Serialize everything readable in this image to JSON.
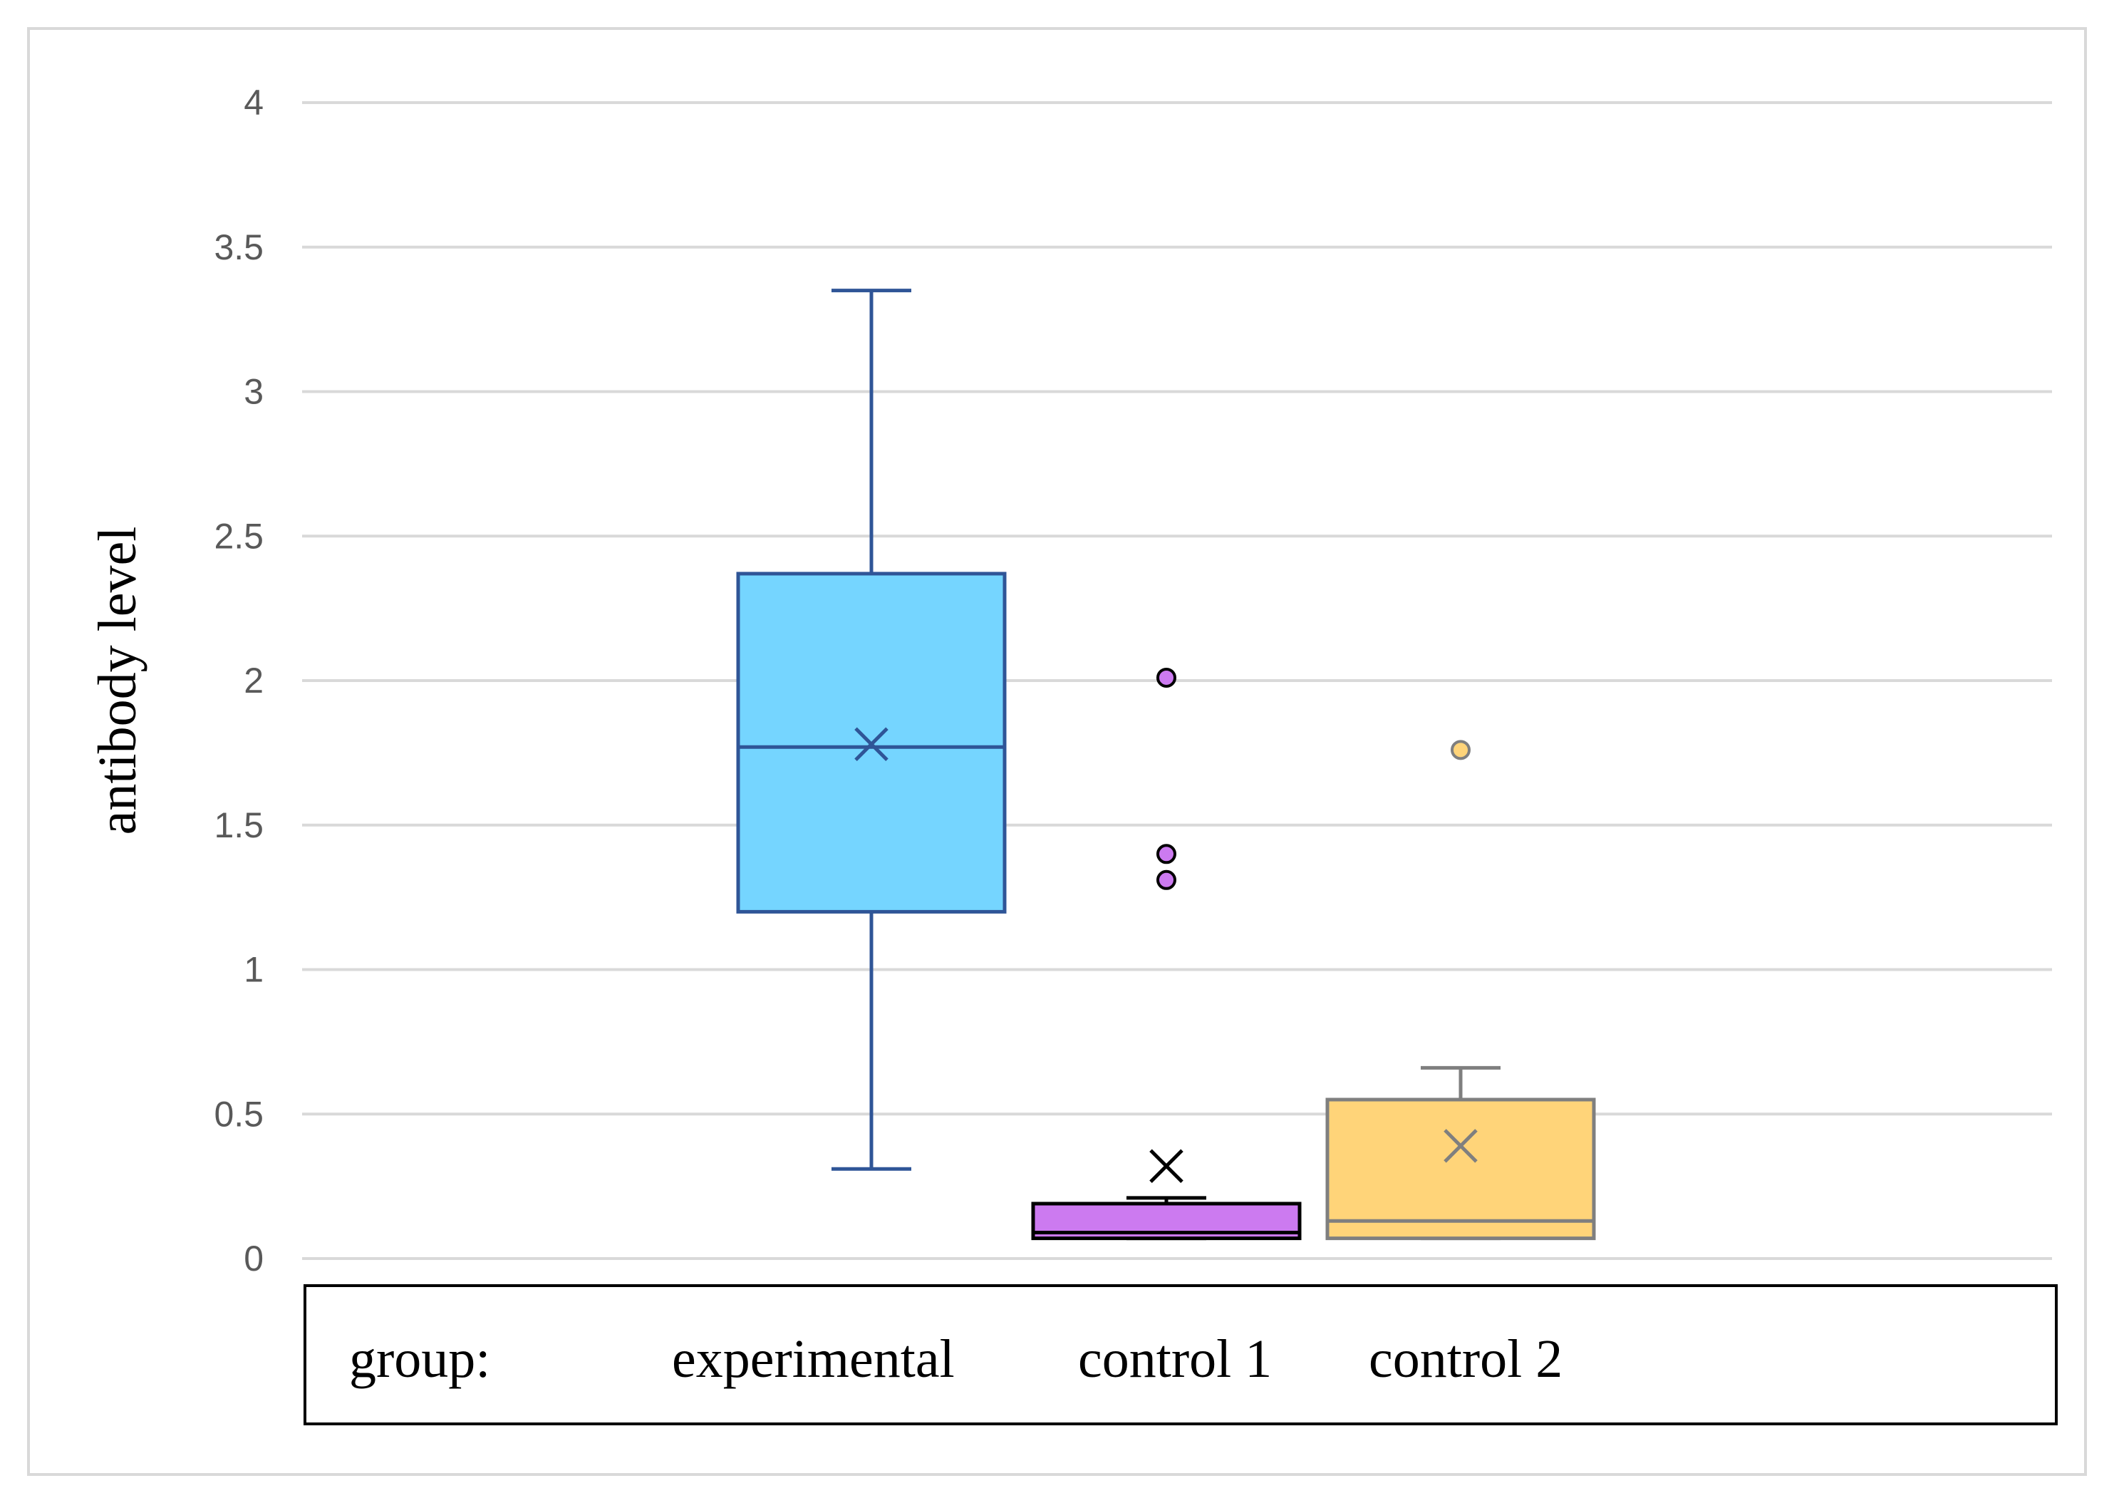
{
  "chart_data": {
    "type": "box",
    "title": "",
    "xlabel": "",
    "ylabel": "antibody level",
    "ylim": [
      0,
      4
    ],
    "yticks": [
      "0",
      "0.5",
      "1",
      "1.5",
      "2",
      "2.5",
      "3",
      "3.5",
      "4"
    ],
    "grid": true,
    "legend": {
      "position": "bottom",
      "title": "group:",
      "entries": [
        "experimental",
        "control 1",
        "control 2"
      ]
    },
    "series": [
      {
        "name": "experimental",
        "color": "#75D5FF",
        "stroke": "#2F5597",
        "whisker_low": 0.31,
        "q1": 1.2,
        "median": 1.77,
        "q3": 2.37,
        "whisker_high": 3.35,
        "mean": 1.78,
        "outliers": []
      },
      {
        "name": "control 1",
        "color": "#CC7AF0",
        "stroke": "#000000",
        "whisker_low": 0.07,
        "q1": 0.07,
        "median": 0.09,
        "q3": 0.19,
        "whisker_high": 0.21,
        "mean": 0.32,
        "outliers": [
          2.01,
          1.4,
          1.31
        ]
      },
      {
        "name": "control 2",
        "color": "#FFD479",
        "stroke": "#7F7F7F",
        "whisker_low": 0.07,
        "q1": 0.07,
        "median": 0.13,
        "q3": 0.55,
        "whisker_high": 0.66,
        "mean": 0.39,
        "outliers": [
          1.76
        ]
      }
    ]
  }
}
